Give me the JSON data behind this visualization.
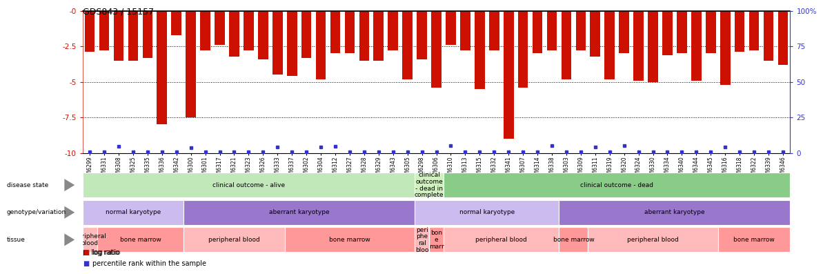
{
  "title": "GDS843 / 15157",
  "samples": [
    "GSM6299",
    "GSM6331",
    "GSM6308",
    "GSM6325",
    "GSM6335",
    "GSM6336",
    "GSM6342",
    "GSM6300",
    "GSM6301",
    "GSM6317",
    "GSM6321",
    "GSM6323",
    "GSM6326",
    "GSM6333",
    "GSM6337",
    "GSM6302",
    "GSM6304",
    "GSM6312",
    "GSM6327",
    "GSM6328",
    "GSM6329",
    "GSM6343",
    "GSM6305",
    "GSM6298",
    "GSM6306",
    "GSM6310",
    "GSM6313",
    "GSM6315",
    "GSM6332",
    "GSM6341",
    "GSM6307",
    "GSM6314",
    "GSM6338",
    "GSM6303",
    "GSM6309",
    "GSM6311",
    "GSM6319",
    "GSM6320",
    "GSM6324",
    "GSM6330",
    "GSM6334",
    "GSM6340",
    "GSM6344",
    "GSM6345",
    "GSM6316",
    "GSM6318",
    "GSM6322",
    "GSM6339",
    "GSM6346"
  ],
  "log_ratio": [
    -2.9,
    -2.8,
    -3.5,
    -3.5,
    -3.3,
    -8.0,
    -1.7,
    -7.5,
    -2.8,
    -2.4,
    -3.2,
    -2.8,
    -3.4,
    -4.5,
    -4.6,
    -3.3,
    -4.8,
    -3.0,
    -3.0,
    -3.5,
    -3.5,
    -2.8,
    -4.8,
    -3.4,
    -5.4,
    -2.4,
    -2.8,
    -5.5,
    -2.8,
    -9.0,
    -5.4,
    -3.0,
    -2.8,
    -4.8,
    -2.8,
    -3.2,
    -4.8,
    -3.0,
    -4.9,
    -5.0,
    -3.1,
    -3.0,
    -4.9,
    -3.0,
    -5.2,
    -2.9,
    -2.8,
    -3.5,
    -3.8
  ],
  "percentile": [
    2,
    2,
    9,
    2,
    2,
    2,
    2,
    7,
    2,
    2,
    2,
    2,
    2,
    8,
    2,
    2,
    8,
    9,
    2,
    2,
    2,
    2,
    2,
    2,
    2,
    10,
    2,
    2,
    2,
    2,
    2,
    2,
    10,
    2,
    2,
    8,
    2,
    10,
    2,
    2,
    2,
    2,
    2,
    2,
    8,
    2,
    2,
    2,
    2
  ],
  "ylim_left": [
    -10,
    0
  ],
  "ylim_right": [
    0,
    100
  ],
  "yticks_left": [
    0,
    -2.5,
    -5.0,
    -7.5,
    -10
  ],
  "ytick_labels_left": [
    "-0",
    "-2.5",
    "-5",
    "-7.5",
    "-10"
  ],
  "yticks_right": [
    0,
    25,
    50,
    75,
    100
  ],
  "ytick_labels_right": [
    "0",
    "25",
    "50",
    "75",
    "100%"
  ],
  "bar_color": "#cc1100",
  "blue_color": "#3333cc",
  "disease_state_groups": [
    {
      "label": "clinical outcome - alive",
      "start": 0,
      "end": 23,
      "color": "#c0e8b8"
    },
    {
      "label": "clinical\noutcome\n- dead in\ncomplete",
      "start": 23,
      "end": 25,
      "color": "#d0f0c0"
    },
    {
      "label": "clinical outcome - dead",
      "start": 25,
      "end": 49,
      "color": "#88cc88"
    }
  ],
  "genotype_groups": [
    {
      "label": "normal karyotype",
      "start": 0,
      "end": 7,
      "color": "#ccbbee"
    },
    {
      "label": "aberrant karyotype",
      "start": 7,
      "end": 23,
      "color": "#9977cc"
    },
    {
      "label": "normal karyotype",
      "start": 23,
      "end": 33,
      "color": "#ccbbee"
    },
    {
      "label": "aberrant karyotype",
      "start": 33,
      "end": 49,
      "color": "#9977cc"
    }
  ],
  "tissue_groups": [
    {
      "label": "peripheral\nblood",
      "start": 0,
      "end": 1,
      "color": "#ffbbbb"
    },
    {
      "label": "bone marrow",
      "start": 1,
      "end": 7,
      "color": "#ff9999"
    },
    {
      "label": "peripheral blood",
      "start": 7,
      "end": 14,
      "color": "#ffbbbb"
    },
    {
      "label": "bone marrow",
      "start": 14,
      "end": 23,
      "color": "#ff9999"
    },
    {
      "label": "peri\nphe\nral\nbloo",
      "start": 23,
      "end": 24,
      "color": "#ffbbbb"
    },
    {
      "label": "bon\ne\nmarr",
      "start": 24,
      "end": 25,
      "color": "#ff9999"
    },
    {
      "label": "peripheral blood",
      "start": 25,
      "end": 33,
      "color": "#ffbbbb"
    },
    {
      "label": "bone marrow",
      "start": 33,
      "end": 35,
      "color": "#ff9999"
    },
    {
      "label": "peripheral blood",
      "start": 35,
      "end": 44,
      "color": "#ffbbbb"
    },
    {
      "label": "bone marrow",
      "start": 44,
      "end": 49,
      "color": "#ff9999"
    }
  ],
  "row_labels": [
    "disease state",
    "genotype/variation",
    "tissue"
  ],
  "legend_items": [
    {
      "color": "#cc1100",
      "label": "log ratio"
    },
    {
      "color": "#3333cc",
      "label": "percentile rank within the sample"
    }
  ]
}
